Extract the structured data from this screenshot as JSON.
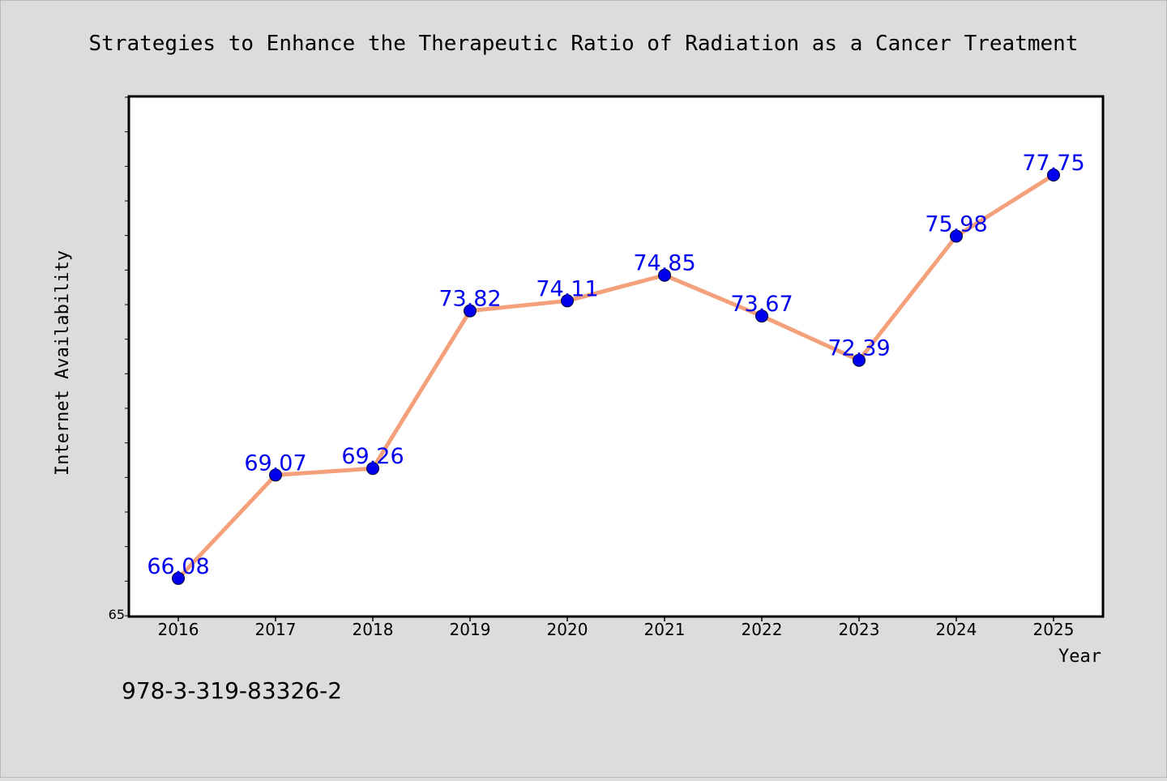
{
  "chart_data": {
    "type": "line",
    "title": "Strategies to Enhance the Therapeutic Ratio of Radiation as a Cancer Treatment",
    "xlabel": "Year",
    "ylabel": "Internet Availability",
    "categories": [
      "2016",
      "2017",
      "2018",
      "2019",
      "2020",
      "2021",
      "2022",
      "2023",
      "2024",
      "2025"
    ],
    "series": [
      {
        "values": [
          66.08,
          69.07,
          69.26,
          73.82,
          74.11,
          74.85,
          73.67,
          72.39,
          75.98,
          77.75
        ]
      }
    ],
    "ylim": [
      65,
      80
    ],
    "y_tick_labels": [
      "65"
    ],
    "grid": false,
    "line_color": "#f4a07a",
    "marker_color": "#0000ee",
    "label_color": "#0000ee"
  },
  "footer_text": "978-3-319-83326-2"
}
